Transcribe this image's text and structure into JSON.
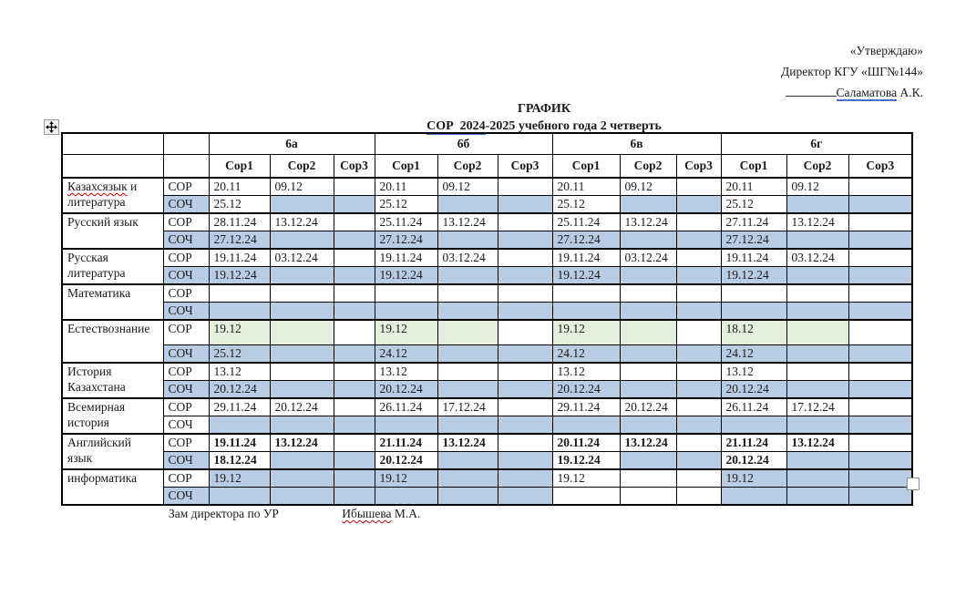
{
  "approval": {
    "line1": "«Утверждаю»",
    "line2": "Директор КГУ «ШГ№144»",
    "signer_name": "Саламатова",
    "signer_suffix": " А.К."
  },
  "title": {
    "line1": "ГРАФИК",
    "line2_underlined": "СОР  2024",
    "line2_rest": "-2025 учебного года 2 четверть"
  },
  "table": {
    "class_headers": [
      "6а",
      "6б",
      "6в",
      "6г"
    ],
    "sor_headers": [
      "Сор1",
      "Сор2",
      "Сор3"
    ],
    "row_labels": {
      "sor": "СОР",
      "soch": "СОЧ"
    },
    "subjects": [
      {
        "name_lines": [
          "Казахсязык и",
          "литература"
        ],
        "wavy_span": "Казахсязык",
        "align": "left",
        "bold": false,
        "tall_sor": false,
        "sor_label_bg": "w",
        "soch_label_bg": "b",
        "sor_values": [
          "20.11",
          "09.12",
          "",
          "20.11",
          "09.12",
          "",
          "20.11",
          "09.12",
          "",
          "20.11",
          "09.12",
          ""
        ],
        "sor_bg": "wwwwwwwwwwww",
        "soch_values": [
          "25.12",
          "",
          "",
          "25.12",
          "",
          "",
          "25.12",
          "",
          "",
          "25.12",
          "",
          ""
        ],
        "soch_bg": "wbbwbbwbbwbb"
      },
      {
        "name_lines": [
          "Русский язык"
        ],
        "align": "left",
        "bold": false,
        "tall_sor": false,
        "sor_label_bg": "w",
        "soch_label_bg": "b",
        "sor_values": [
          "28.11.24",
          "13.12.24",
          "",
          "25.11.24",
          "13.12.24",
          "",
          "25.11.24",
          "13.12.24",
          "",
          "27.11.24",
          "13.12.24",
          ""
        ],
        "sor_bg": "wwwwwwwwwwww",
        "soch_values": [
          "27.12.24",
          "",
          "",
          "27.12.24",
          "",
          "",
          "27.12.24",
          "",
          "",
          "27.12.24",
          "",
          ""
        ],
        "soch_bg": "bbbbbbbbbbbb"
      },
      {
        "name_lines": [
          "Русская",
          "литература"
        ],
        "align": "left",
        "bold": false,
        "tall_sor": false,
        "sor_label_bg": "w",
        "soch_label_bg": "b",
        "sor_values": [
          "19.11.24",
          "03.12.24",
          "",
          "19.11.24",
          "03.12.24",
          "",
          "19.11.24",
          "03.12.24",
          "",
          "19.11.24",
          "03.12.24",
          ""
        ],
        "sor_bg": "wwwwwwwwwwww",
        "soch_values": [
          "19.12.24",
          "",
          "",
          "19.12.24",
          "",
          "",
          "19.12.24",
          "",
          "",
          "19.12.24",
          "",
          ""
        ],
        "soch_bg": "bbbbbbbbbbbb"
      },
      {
        "name_lines": [
          "Математика"
        ],
        "align": "left",
        "bold": false,
        "tall_sor": false,
        "sor_label_bg": "w",
        "soch_label_bg": "b",
        "sor_values": [
          "",
          "",
          "",
          "",
          "",
          "",
          "",
          "",
          "",
          "",
          "",
          ""
        ],
        "sor_bg": "wwwwwwwwwwww",
        "soch_values": [
          "",
          "",
          "",
          "",
          "",
          "",
          "",
          "",
          "",
          "",
          "",
          ""
        ],
        "soch_bg": "bbbbbbbbbbbb"
      },
      {
        "name_lines": [
          "Естествознание"
        ],
        "align": "center",
        "bold": false,
        "tall_sor": true,
        "sor_label_bg": "w",
        "soch_label_bg": "b",
        "sor_values": [
          "19.12",
          "",
          "",
          "19.12",
          "",
          "",
          "19.12",
          "",
          "",
          "18.12",
          "",
          ""
        ],
        "sor_bg": "ggwggwggwggw",
        "soch_values": [
          "25.12",
          "",
          "",
          "24.12",
          "",
          "",
          "24.12",
          "",
          "",
          "24.12",
          "",
          ""
        ],
        "soch_bg": "bbbbbbbbbbbb"
      },
      {
        "name_lines": [
          "История",
          "Казахстана"
        ],
        "align": "left",
        "bold": false,
        "tall_sor": false,
        "sor_label_bg": "w",
        "soch_label_bg": "b",
        "sor_values": [
          "13.12",
          "",
          "",
          "13.12",
          "",
          "",
          "13.12",
          "",
          "",
          "13.12",
          "",
          ""
        ],
        "sor_bg": "wwwwwwwwwwww",
        "soch_values": [
          "20.12.24",
          "",
          "",
          "20.12.24",
          "",
          "",
          "20.12.24",
          "",
          "",
          "20.12.24",
          "",
          ""
        ],
        "soch_bg": "bbbbbbbbbbbb"
      },
      {
        "name_lines": [
          "Всемирная",
          "история"
        ],
        "align": "left",
        "bold": false,
        "tall_sor": false,
        "sor_label_bg": "w",
        "soch_label_bg": "w",
        "sor_values": [
          "29.11.24",
          "20.12.24",
          "",
          "26.11.24",
          "17.12.24",
          "",
          "29.11.24",
          "20.12.24",
          "",
          "26.11.24",
          "17.12.24",
          ""
        ],
        "sor_bg": "wwwwwwwwwwww",
        "soch_values": [
          "",
          "",
          "",
          "",
          "",
          "",
          "",
          "",
          "",
          "",
          "",
          ""
        ],
        "soch_bg": "bbbbbbbbbbbb"
      },
      {
        "name_lines": [
          "Английский",
          "язык"
        ],
        "align": "left",
        "bold": true,
        "tall_sor": false,
        "sor_label_bg": "w",
        "soch_label_bg": "b",
        "sor_values": [
          "19.11.24",
          "13.12.24",
          "",
          "21.11.24",
          "13.12.24",
          "",
          "20.11.24",
          "13.12.24",
          "",
          "21.11.24",
          "13.12.24",
          ""
        ],
        "sor_bg": "wwwwwwwwwwww",
        "soch_values": [
          "18.12.24",
          "",
          "",
          "20.12.24",
          "",
          "",
          "19.12.24",
          "",
          "",
          "20.12.24",
          "",
          ""
        ],
        "soch_bg": "wbbwbbwbbwbb"
      },
      {
        "name_lines": [
          "информатика"
        ],
        "align": "center",
        "bold": false,
        "tall_sor": false,
        "sor_label_bg": "w",
        "soch_label_bg": "b",
        "sor_values": [
          "19.12",
          "",
          "",
          "19.12",
          "",
          "",
          "19.12",
          "",
          "",
          "19.12",
          "",
          ""
        ],
        "sor_bg": "bbbbbbwwwbbb",
        "soch_values": [
          "",
          "",
          "",
          "",
          "",
          "",
          "",
          "",
          "",
          "",
          "",
          ""
        ],
        "soch_bg": "bbbbbbwwwbbb"
      }
    ]
  },
  "footer": {
    "left": "Зам директора по УР",
    "right_name": "Ибышева",
    "right_suffix": " М.А."
  },
  "colors": {
    "shade_blue": "#b8cce4",
    "shade_green": "#e2efda",
    "underline_blue": "#4472c4",
    "squiggle_red": "#cc0000"
  },
  "icons": {
    "move_handle": "move-cross-icon",
    "resize_handle": "resize-square-icon"
  }
}
